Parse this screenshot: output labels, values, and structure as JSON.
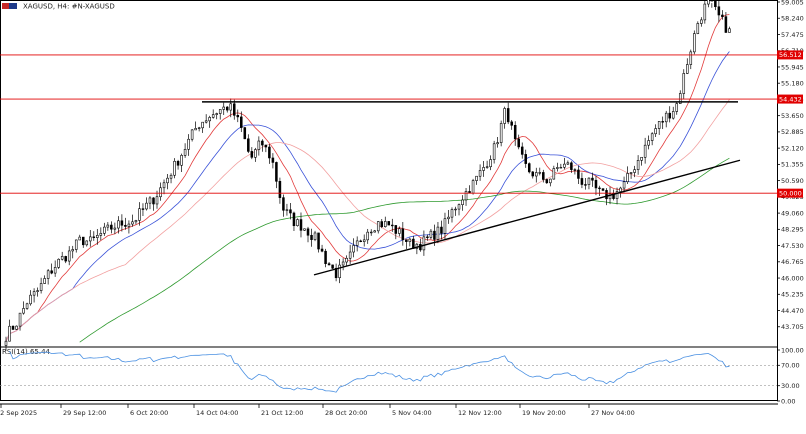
{
  "header": {
    "title": "XAGUSD, H4:  #N-XAGUSD"
  },
  "rsi": {
    "label": "RSI(14) 65.44",
    "levels": [
      "100.00",
      "70.00",
      "30.00",
      "0.00"
    ],
    "level_values": [
      100,
      70,
      30,
      0
    ]
  },
  "colors": {
    "up_candle": "#000000",
    "down_candle": "#000000",
    "ma_fast": "#e23b3b",
    "ma_mid": "#3a52d8",
    "ma_slow": "#f2a0a0",
    "ma_long": "#2f9a2f",
    "level_line": "#e00000",
    "trend_line": "#000000",
    "rsi_line": "#4a90e2"
  },
  "chart_data": {
    "type": "candlestick",
    "symbol": "XAGUSD",
    "timeframe": "H4",
    "y_ticks": [
      "59.005",
      "58.240",
      "57.475",
      "56.710",
      "55.945",
      "55.180",
      "54.415",
      "53.650",
      "52.885",
      "52.120",
      "51.355",
      "50.590",
      "49.825",
      "49.060",
      "48.295",
      "47.530",
      "46.765",
      "46.000",
      "45.235",
      "44.470",
      "43.705"
    ],
    "ylim": [
      42.94,
      59.005
    ],
    "x_labels": [
      "22 Sep 2025",
      "29 Sep 12:00",
      "6 Oct 20:00",
      "14 Oct 04:00",
      "21 Oct 12:00",
      "28 Oct 20:00",
      "5 Nov 04:00",
      "12 Nov 12:00",
      "19 Nov 20:00",
      "27 Nov 04:00"
    ],
    "horizontal_levels": [
      {
        "value": 56.512,
        "label": "56.512"
      },
      {
        "value": 54.432,
        "label": "54.432"
      },
      {
        "value": 50.0,
        "label": "50.000"
      }
    ],
    "resistance_line": {
      "from": "14 Oct 04:00",
      "to": "end",
      "value": 54.3
    },
    "support_trendline": {
      "from": {
        "x": "27 Oct 08:00",
        "y": 46.15
      },
      "to": {
        "x": "end",
        "y": 51.55
      }
    },
    "candles": {
      "start": "22 Sep 2025",
      "interval_hours": 4,
      "close_anchor_values": [
        43.3,
        43.9,
        44.9,
        45.4,
        46.2,
        46.8,
        47.2,
        47.8,
        47.7,
        48.1,
        48.4,
        48.6,
        48.7,
        49.3,
        49.8,
        50.6,
        51.4,
        52.3,
        53.2,
        53.6,
        53.9,
        54.1,
        53.2,
        51.6,
        52.4,
        51.6,
        49.3,
        48.7,
        48.4,
        47.9,
        46.9,
        46.2,
        46.7,
        47.6,
        48.3,
        48.6,
        48.5,
        48.1,
        47.6,
        47.6,
        48.0,
        48.3,
        49.2,
        49.9,
        50.5,
        51.3,
        52.2,
        54.0,
        52.1,
        51.1,
        50.8,
        50.6,
        51.3,
        51.3,
        50.6,
        50.4,
        49.9,
        49.9,
        50.3,
        51.2,
        52.1,
        53.0,
        53.6,
        54.1,
        56.1,
        58.0,
        59.1,
        58.3,
        57.6
      ],
      "anchor_count": 69,
      "candle_count": 207,
      "seed": 7
    },
    "moving_averages": [
      {
        "color": "#e23b3b",
        "period": 10
      },
      {
        "color": "#3a52d8",
        "period": 20
      },
      {
        "color": "#f2a0a0",
        "period": 35
      },
      {
        "color": "#2f9a2f",
        "period": 100
      }
    ],
    "grid": false,
    "legend": "none"
  }
}
